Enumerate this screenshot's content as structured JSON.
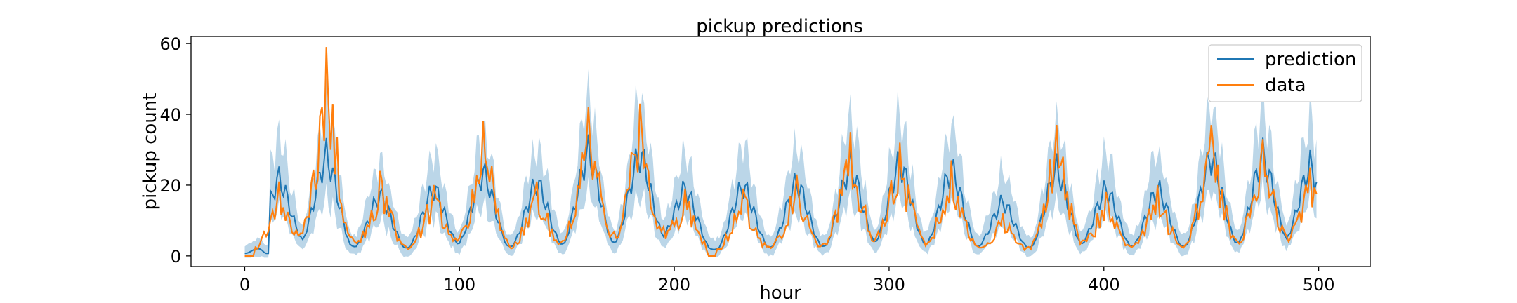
{
  "chart_data": {
    "type": "line",
    "title": "pickup predictions",
    "xlabel": "hour",
    "ylabel": "pickup count",
    "xlim": [
      -25,
      524
    ],
    "ylim": [
      -3,
      62
    ],
    "xticks": [
      0,
      100,
      200,
      300,
      400,
      500
    ],
    "yticks": [
      0,
      20,
      40,
      60
    ],
    "legend": {
      "placement": "top-right"
    },
    "grid": false,
    "series": [
      {
        "name": "prediction",
        "color": "#1f77b4",
        "band_color": "#1f77b4",
        "band_opacity": 0.3
      },
      {
        "name": "data",
        "color": "#ff7f0e"
      }
    ],
    "x_range": [
      0,
      499
    ],
    "peaks": [
      {
        "center": 16,
        "pred": 23,
        "data": 21
      },
      {
        "center": 38,
        "pred": 30,
        "data": 59
      },
      {
        "center": 63,
        "pred": 18,
        "data": 24
      },
      {
        "center": 88,
        "pred": 20,
        "data": 20
      },
      {
        "center": 111,
        "pred": 25,
        "data": 38
      },
      {
        "center": 136,
        "pred": 22,
        "data": 21
      },
      {
        "center": 160,
        "pred": 31,
        "data": 42
      },
      {
        "center": 184,
        "pred": 31,
        "data": 43
      },
      {
        "center": 205,
        "pred": 20,
        "data": 19
      },
      {
        "center": 232,
        "pred": 21,
        "data": 19
      },
      {
        "center": 257,
        "pred": 22,
        "data": 23
      },
      {
        "center": 282,
        "pred": 27,
        "data": 35
      },
      {
        "center": 305,
        "pred": 28,
        "data": 32
      },
      {
        "center": 329,
        "pred": 26,
        "data": 27
      },
      {
        "center": 353,
        "pred": 16,
        "data": 12
      },
      {
        "center": 378,
        "pred": 26,
        "data": 37
      },
      {
        "center": 401,
        "pred": 20,
        "data": 18
      },
      {
        "center": 425,
        "pred": 20,
        "data": 20
      },
      {
        "center": 450,
        "pred": 30,
        "data": 37
      },
      {
        "center": 474,
        "pred": 30,
        "data": 33
      },
      {
        "center": 496,
        "pred": 27,
        "data": 25
      }
    ],
    "baseline": 0.7
  }
}
